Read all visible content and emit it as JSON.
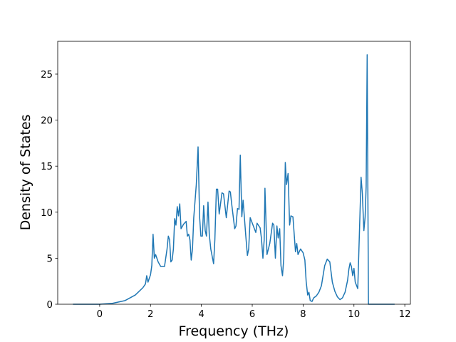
{
  "chart_data": {
    "type": "line",
    "xlabel": "Frequency (THz)",
    "ylabel": "Density of States",
    "xlim": [
      -1.65,
      12.22
    ],
    "ylim": [
      0,
      28.56
    ],
    "xticks": [
      0,
      2,
      4,
      6,
      8,
      10,
      12
    ],
    "yticks": [
      0,
      5,
      10,
      15,
      20,
      25
    ],
    "series": [
      {
        "color": "#1f77b4",
        "x": [
          -1.05,
          0,
          0.5,
          1.0,
          1.4,
          1.7,
          1.8,
          1.85,
          1.9,
          2.0,
          2.05,
          2.1,
          2.15,
          2.2,
          2.3,
          2.4,
          2.55,
          2.65,
          2.7,
          2.75,
          2.8,
          2.85,
          2.9,
          2.95,
          3.0,
          3.05,
          3.1,
          3.15,
          3.2,
          3.3,
          3.4,
          3.45,
          3.5,
          3.55,
          3.6,
          3.65,
          3.7,
          3.8,
          3.87,
          3.93,
          3.98,
          4.04,
          4.09,
          4.15,
          4.2,
          4.26,
          4.31,
          4.37,
          4.48,
          4.53,
          4.59,
          4.64,
          4.7,
          4.81,
          4.87,
          4.98,
          5.09,
          5.14,
          5.2,
          5.31,
          5.36,
          5.42,
          5.48,
          5.53,
          5.59,
          5.64,
          5.75,
          5.81,
          5.86,
          5.92,
          6.03,
          6.14,
          6.19,
          6.31,
          6.36,
          6.42,
          6.47,
          6.5,
          6.58,
          6.69,
          6.8,
          6.85,
          6.91,
          6.97,
          7.02,
          7.08,
          7.13,
          7.19,
          7.24,
          7.3,
          7.35,
          7.41,
          7.47,
          7.52,
          7.6,
          7.7,
          7.75,
          7.8,
          7.9,
          8.0,
          8.07,
          8.12,
          8.18,
          8.23,
          8.28,
          8.35,
          8.42,
          8.52,
          8.62,
          8.72,
          8.85,
          8.95,
          9.05,
          9.15,
          9.25,
          9.35,
          9.45,
          9.55,
          9.65,
          9.75,
          9.8,
          9.85,
          9.9,
          9.95,
          10.0,
          10.05,
          10.15,
          10.28,
          10.33,
          10.39,
          10.44,
          10.48,
          10.52,
          10.57,
          11.6
        ],
        "values": [
          0,
          0,
          0.1,
          0.4,
          1.0,
          1.8,
          2.2,
          3.1,
          2.4,
          3.2,
          4.2,
          7.6,
          5.0,
          5.4,
          4.6,
          4.1,
          4.1,
          6.0,
          7.4,
          7.0,
          4.6,
          4.8,
          6.0,
          9.3,
          8.6,
          10.6,
          9.6,
          10.9,
          8.2,
          8.7,
          9.0,
          7.4,
          7.6,
          7.0,
          4.8,
          6.0,
          9.4,
          13,
          17.1,
          9.5,
          7.4,
          7.4,
          10.7,
          8.0,
          7.4,
          11.1,
          7.6,
          6.0,
          4.4,
          7.0,
          12.5,
          12.5,
          9.8,
          12.1,
          12.0,
          9.4,
          12.3,
          12.2,
          10.7,
          8.2,
          8.5,
          10.4,
          10.3,
          16.2,
          9.5,
          11.3,
          7.3,
          5.3,
          6.0,
          9.4,
          8.6,
          7.8,
          8.8,
          8.3,
          7.2,
          5.0,
          7.0,
          12.6,
          5.4,
          6.6,
          8.8,
          8.6,
          5.0,
          8.5,
          7.2,
          8.2,
          4.2,
          3.1,
          5.0,
          15.4,
          13.0,
          14.2,
          8.6,
          9.6,
          9.5,
          5.7,
          6.6,
          5.4,
          6.0,
          5.6,
          4.8,
          2.5,
          1.0,
          1.3,
          0.4,
          0.3,
          0.7,
          0.9,
          1.3,
          2.0,
          4.2,
          4.9,
          4.6,
          2.4,
          1.4,
          0.8,
          0.5,
          0.7,
          1.3,
          2.6,
          3.8,
          4.5,
          4.1,
          3.1,
          3.9,
          2.4,
          1.7,
          13.8,
          12,
          8.0,
          9.5,
          12.8,
          27.1,
          0,
          0
        ]
      }
    ]
  }
}
